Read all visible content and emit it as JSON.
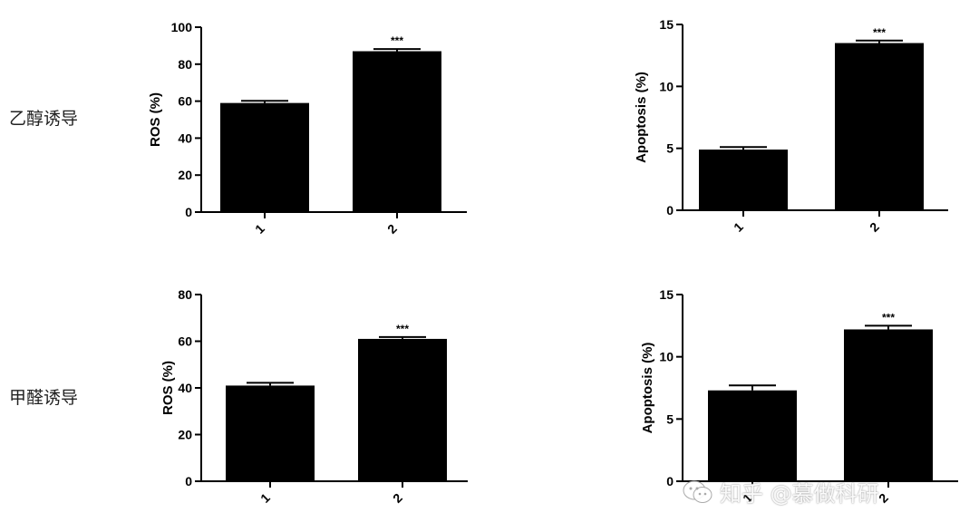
{
  "row_labels": [
    "乙醇诱导",
    "甲醛诱导"
  ],
  "watermark": {
    "text": "知乎 @慕做科研",
    "icon": "wechat-icon"
  },
  "chart_data": [
    {
      "type": "bar",
      "categories": [
        "1",
        "2"
      ],
      "values": [
        59,
        87
      ],
      "errors": [
        1.2,
        1.2
      ],
      "annotations": [
        "",
        "***"
      ],
      "ylabel": "ROS (%)",
      "ylim": [
        0,
        100
      ],
      "yticks": [
        0,
        20,
        40,
        60,
        80,
        100
      ]
    },
    {
      "type": "bar",
      "categories": [
        "1",
        "2"
      ],
      "values": [
        4.9,
        13.5
      ],
      "errors": [
        0.2,
        0.2
      ],
      "annotations": [
        "",
        "***"
      ],
      "ylabel": "Apoptosis (%)",
      "ylim": [
        0,
        15
      ],
      "yticks": [
        0,
        5,
        10,
        15
      ]
    },
    {
      "type": "bar",
      "categories": [
        "1",
        "2"
      ],
      "values": [
        41,
        61
      ],
      "errors": [
        1.2,
        0.8
      ],
      "annotations": [
        "",
        "***"
      ],
      "ylabel": "ROS (%)",
      "ylim": [
        0,
        80
      ],
      "yticks": [
        0,
        20,
        40,
        60,
        80
      ]
    },
    {
      "type": "bar",
      "categories": [
        "1",
        "2"
      ],
      "values": [
        7.3,
        12.2
      ],
      "errors": [
        0.4,
        0.3
      ],
      "annotations": [
        "",
        "***"
      ],
      "ylabel": "Apoptosis (%)",
      "ylim": [
        0,
        15
      ],
      "yticks": [
        0,
        5,
        10,
        15
      ]
    }
  ]
}
